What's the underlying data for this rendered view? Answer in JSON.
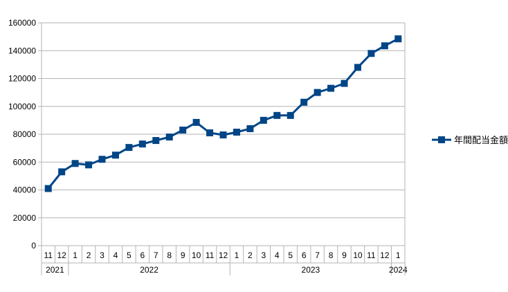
{
  "chart_data": {
    "type": "line",
    "title": "",
    "xlabel": "",
    "ylabel": "",
    "ylim": [
      0,
      160000
    ],
    "y_ticks": [
      0,
      20000,
      40000,
      60000,
      80000,
      100000,
      120000,
      140000,
      160000
    ],
    "grid": true,
    "legend_position": "right",
    "series_color": "#004586",
    "categories": [
      "11",
      "12",
      "1",
      "2",
      "3",
      "4",
      "5",
      "6",
      "7",
      "8",
      "9",
      "10",
      "11",
      "12",
      "1",
      "2",
      "3",
      "4",
      "5",
      "6",
      "7",
      "8",
      "9",
      "10",
      "11",
      "12",
      "1"
    ],
    "year_groups": [
      {
        "label": "2021",
        "count": 2
      },
      {
        "label": "2022",
        "count": 12
      },
      {
        "label": "2023",
        "count": 12
      },
      {
        "label": "2024",
        "count": 1
      }
    ],
    "series": [
      {
        "name": "年間配当金額",
        "values": [
          41000,
          53000,
          59000,
          58000,
          62000,
          65000,
          70500,
          73000,
          75500,
          78000,
          83000,
          88500,
          81000,
          79500,
          81500,
          84000,
          90000,
          93500,
          93500,
          103000,
          110000,
          113000,
          116500,
          128000,
          138000,
          143500,
          148500
        ]
      }
    ]
  }
}
